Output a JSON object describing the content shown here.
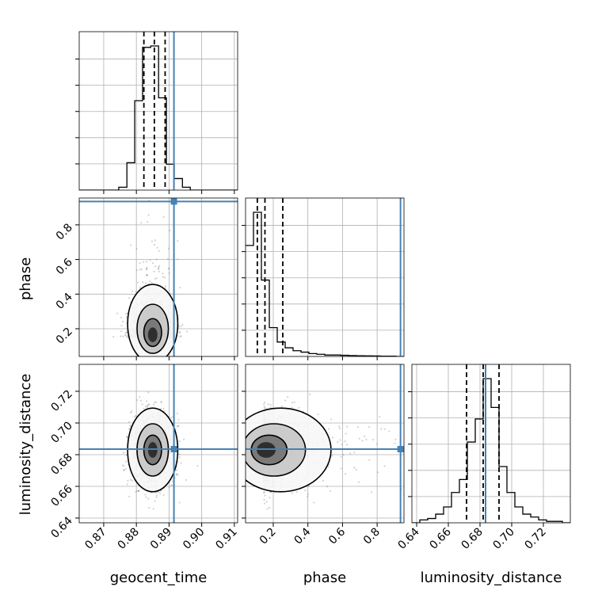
{
  "chart_data": {
    "type": "corner",
    "parameters": [
      "geocent_time",
      "phase",
      "luminosity_distance"
    ],
    "truth_color": "#4682b4",
    "truths": {
      "geocent_time": 0.8915,
      "phase": 0.935,
      "luminosity_distance": 0.6835
    },
    "axes": {
      "geocent_time": {
        "label": "geocent_time",
        "range": [
          0.8625,
          0.911
        ],
        "ticks": [
          0.87,
          0.88,
          0.89,
          0.9,
          0.91
        ],
        "tick_labels": [
          "0.87",
          "0.88",
          "0.89",
          "0.90",
          "0.91"
        ]
      },
      "phase": {
        "label": "phase",
        "range": [
          0.04,
          0.955
        ],
        "ticks": [
          0.2,
          0.4,
          0.6,
          0.8
        ],
        "tick_labels": [
          "0.2",
          "0.4",
          "0.6",
          "0.8"
        ]
      },
      "luminosity_distance": {
        "label": "luminosity_distance",
        "range": [
          0.637,
          0.737
        ],
        "ticks": [
          0.64,
          0.66,
          0.68,
          0.7,
          0.72
        ],
        "tick_labels": [
          "0.64",
          "0.66",
          "0.68",
          "0.70",
          "0.72"
        ]
      }
    },
    "marginals": {
      "geocent_time": {
        "bin_edges": [
          0.8625,
          0.8649,
          0.8674,
          0.8698,
          0.8722,
          0.8746,
          0.8771,
          0.8795,
          0.8819,
          0.8844,
          0.8868,
          0.8892,
          0.8916,
          0.8941,
          0.8965,
          0.8989,
          0.9013,
          0.9038,
          0.9062,
          0.9086,
          0.911
        ],
        "counts": [
          0,
          0,
          0,
          0,
          0,
          0.02,
          0.19,
          0.62,
          0.99,
          1.0,
          0.64,
          0.18,
          0.08,
          0.02,
          0,
          0,
          0,
          0,
          0,
          0
        ],
        "quantiles": [
          0.8823,
          0.8855,
          0.8888
        ]
      },
      "phase": {
        "bin_edges": [
          0.04,
          0.0858,
          0.1315,
          0.1773,
          0.223,
          0.2688,
          0.3145,
          0.3603,
          0.406,
          0.4518,
          0.4975,
          0.5433,
          0.589,
          0.6348,
          0.6805,
          0.7263,
          0.772,
          0.8178,
          0.8635,
          0.9093,
          0.955
        ],
        "counts": [
          0.77,
          1.0,
          0.53,
          0.2,
          0.1,
          0.06,
          0.04,
          0.03,
          0.02,
          0.015,
          0.01,
          0.01,
          0.008,
          0.006,
          0.005,
          0.004,
          0.003,
          0.002,
          0.002,
          0
        ],
        "quantiles": [
          0.108,
          0.152,
          0.255
        ]
      },
      "luminosity_distance": {
        "bin_edges": [
          0.637,
          0.642,
          0.647,
          0.652,
          0.657,
          0.662,
          0.667,
          0.672,
          0.677,
          0.682,
          0.687,
          0.692,
          0.697,
          0.702,
          0.707,
          0.712,
          0.717,
          0.722,
          0.727,
          0.732,
          0.737
        ],
        "counts": [
          0,
          0.02,
          0.03,
          0.06,
          0.11,
          0.21,
          0.3,
          0.56,
          0.72,
          1.0,
          0.8,
          0.39,
          0.21,
          0.11,
          0.06,
          0.04,
          0.02,
          0.01,
          0.01,
          0
        ],
        "quantiles": [
          0.6715,
          0.682,
          0.692
        ]
      }
    },
    "joint": {
      "geocent_time__phase": {
        "center": [
          0.885,
          0.15
        ],
        "spread": [
          0.0032,
          0.07
        ],
        "density_max": [
          0.885,
          0.15
        ]
      },
      "geocent_time__luminosity_distance": {
        "center": [
          0.885,
          0.683
        ],
        "spread": [
          0.0032,
          0.011
        ],
        "density_max": [
          0.885,
          0.683
        ]
      },
      "phase__luminosity_distance": {
        "center": [
          0.14,
          0.683
        ],
        "spread": [
          0.09,
          0.011
        ],
        "density_max": [
          0.14,
          0.683
        ]
      }
    }
  }
}
